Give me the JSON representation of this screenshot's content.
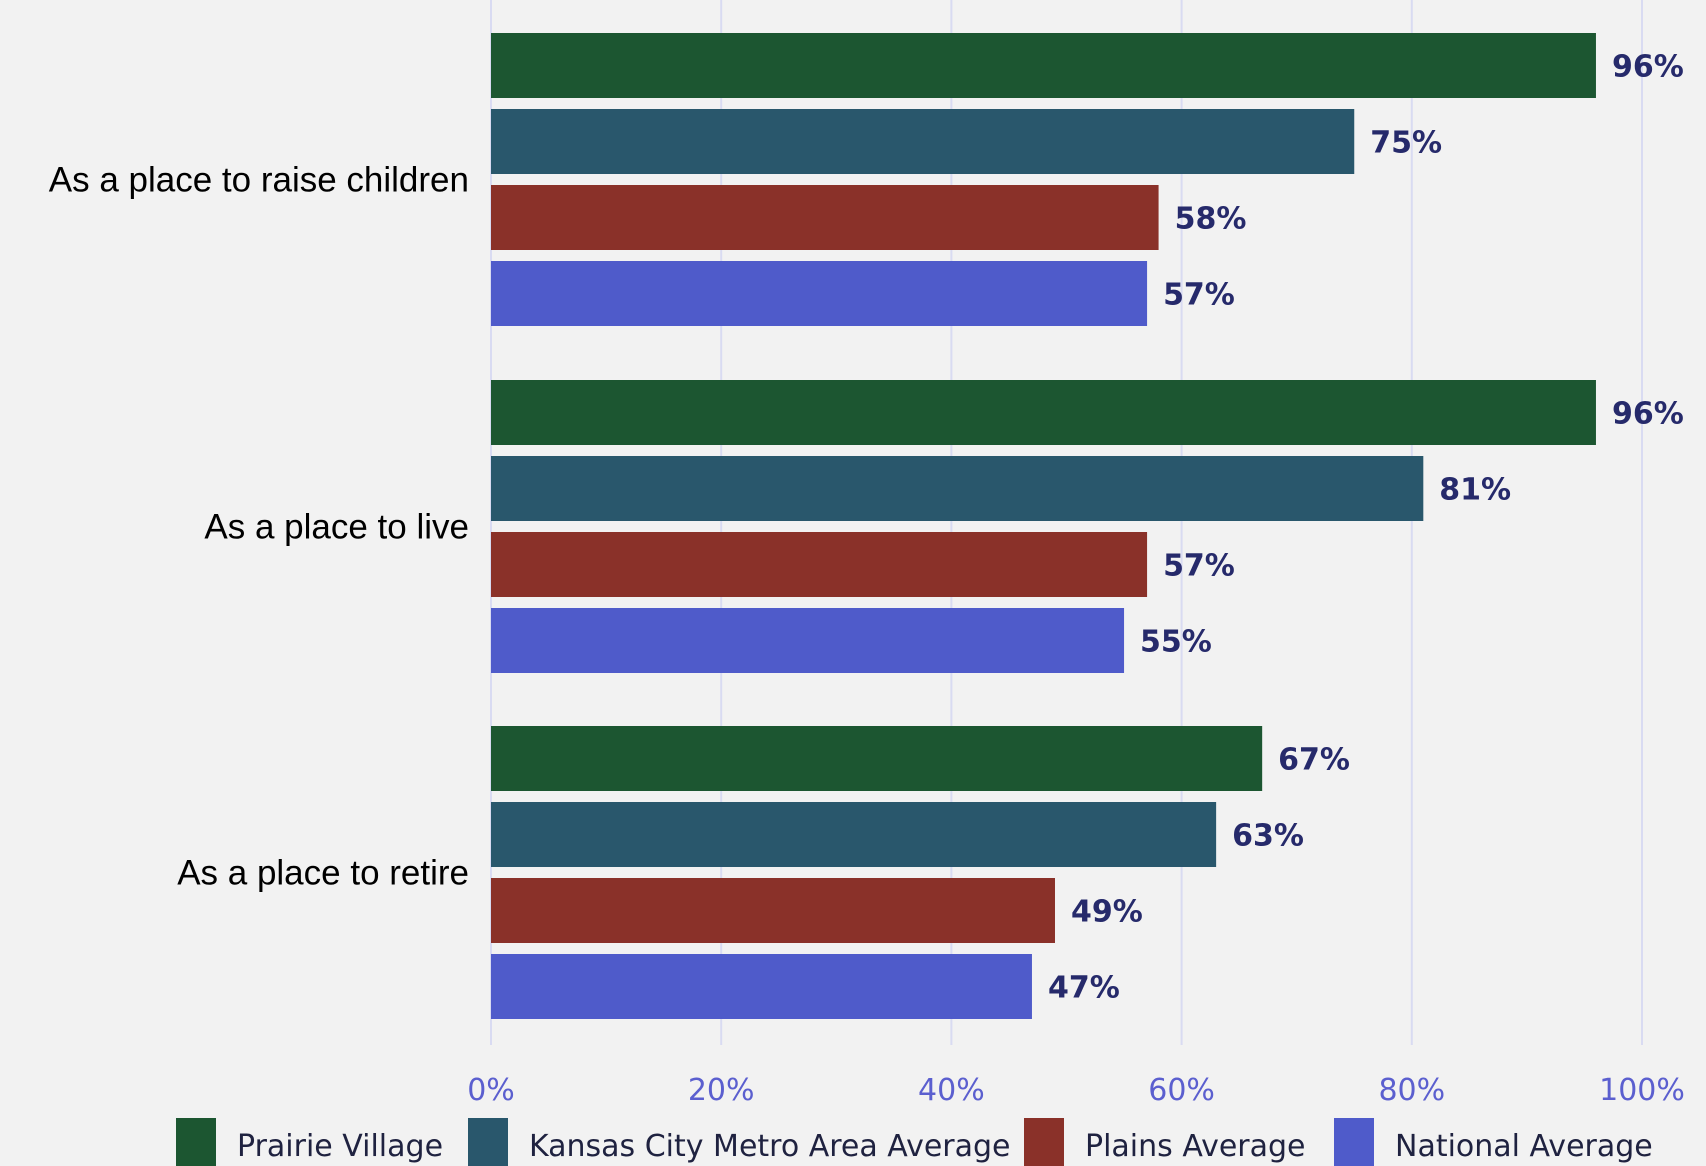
{
  "chart_data": {
    "type": "bar",
    "orientation": "horizontal",
    "categories": [
      "As a place to raise children",
      "As a place to live",
      "As a place to retire"
    ],
    "series": [
      {
        "name": "Prairie Village",
        "color": "#1c5631",
        "values": [
          96,
          96,
          67
        ],
        "labels": [
          "96%",
          "96%",
          "67%"
        ]
      },
      {
        "name": "Kansas City Metro Area Average",
        "color": "#29576c",
        "values": [
          75,
          81,
          63
        ],
        "labels": [
          "75%",
          "81%",
          "63%"
        ]
      },
      {
        "name": "Plains Average",
        "color": "#8a3129",
        "values": [
          58,
          57,
          49
        ],
        "labels": [
          "58%",
          "57%",
          "49%"
        ]
      },
      {
        "name": "National Average",
        "color": "#4f5bca",
        "values": [
          57,
          55,
          47
        ],
        "labels": [
          "57%",
          "55%",
          "47%"
        ]
      }
    ],
    "xlim": [
      0,
      100
    ],
    "xticks": [
      0,
      20,
      40,
      60,
      80,
      100
    ],
    "xtick_labels": [
      "0%",
      "20%",
      "40%",
      "60%",
      "80%",
      "100%"
    ],
    "grid": true,
    "legend_position": "bottom",
    "title": "",
    "xlabel": "",
    "ylabel": ""
  }
}
